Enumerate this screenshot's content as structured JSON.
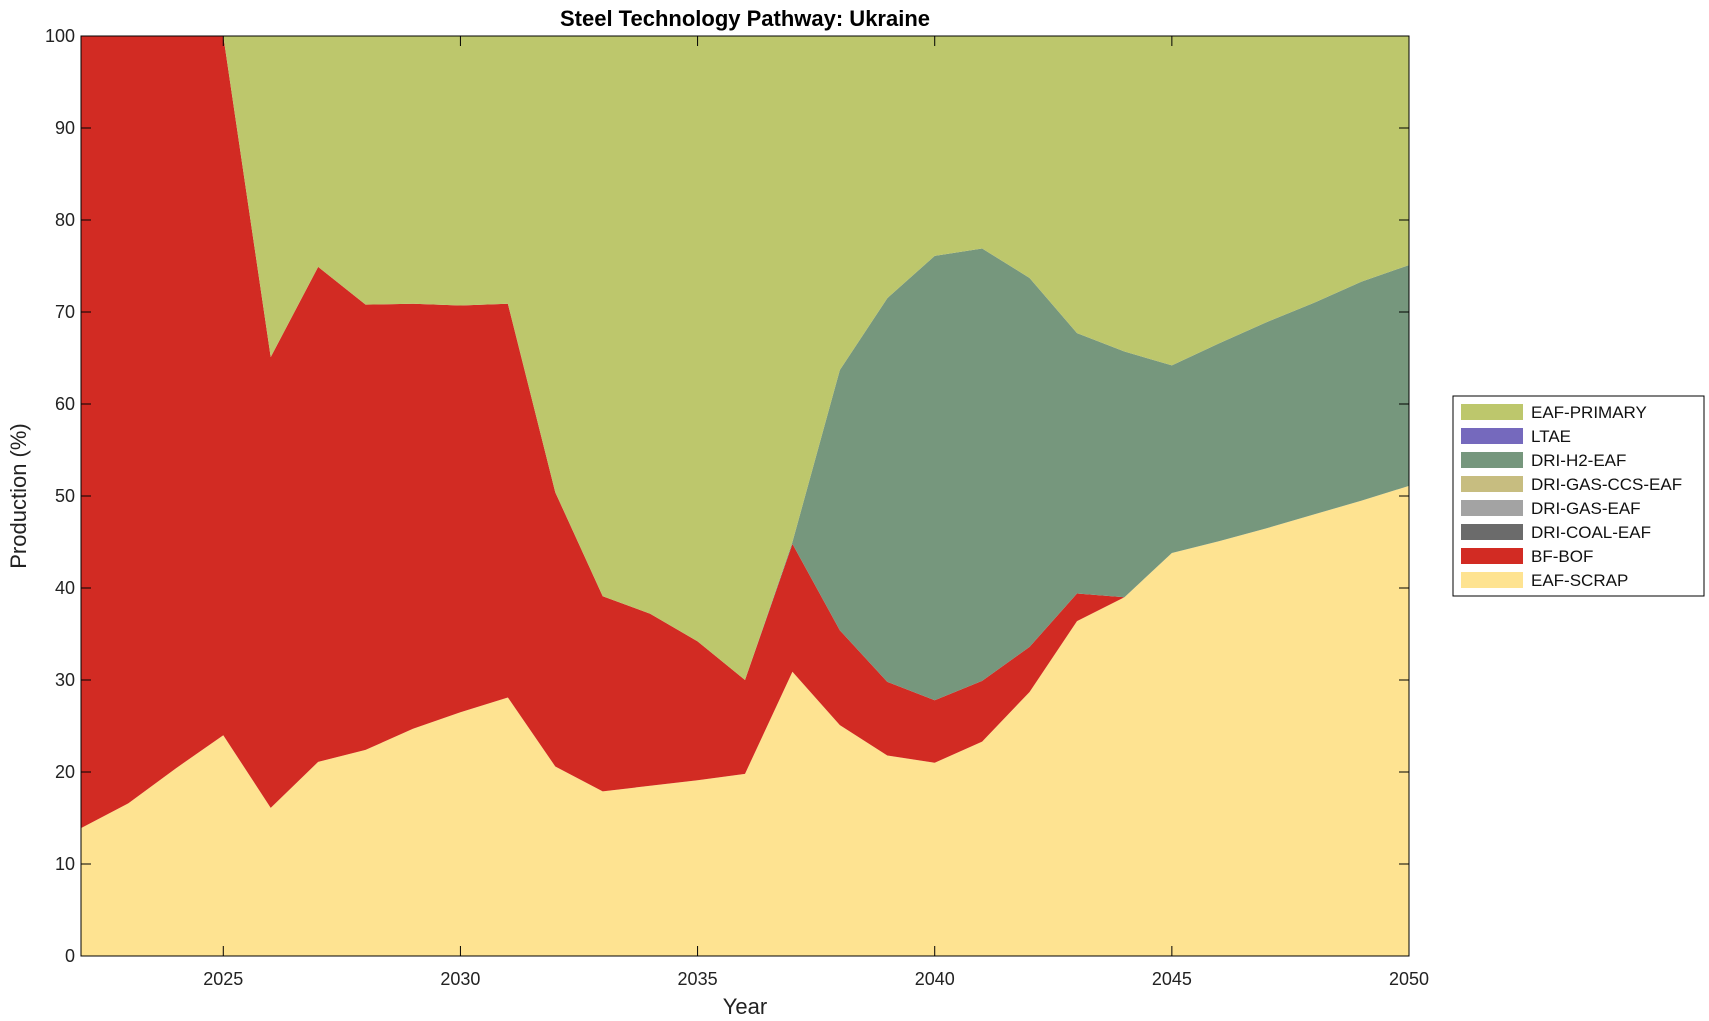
{
  "chart_data": {
    "type": "area",
    "title": "Steel Technology Pathway: Ukraine",
    "xlabel": "Year",
    "ylabel": "Production (%)",
    "xlim": [
      2022,
      2050
    ],
    "ylim": [
      0,
      100
    ],
    "xticks": [
      2025,
      2030,
      2035,
      2040,
      2045,
      2050
    ],
    "yticks": [
      0,
      10,
      20,
      30,
      40,
      50,
      60,
      70,
      80,
      90,
      100
    ],
    "grid": false,
    "stacked": true,
    "legend_position": "right",
    "x": [
      2022,
      2023,
      2024,
      2025,
      2026,
      2027,
      2028,
      2029,
      2030,
      2031,
      2032,
      2033,
      2034,
      2035,
      2036,
      2037,
      2038,
      2039,
      2040,
      2041,
      2042,
      2043,
      2044,
      2045,
      2046,
      2047,
      2048,
      2049,
      2050
    ],
    "series": [
      {
        "name": "EAF-SCRAP",
        "color": "#FEE391",
        "values": [
          13.9,
          16.6,
          20.4,
          24.0,
          16.1,
          21.1,
          22.4,
          24.7,
          26.5,
          28.1,
          20.6,
          17.9,
          18.5,
          19.1,
          19.8,
          30.9,
          25.1,
          21.8,
          21.0,
          23.3,
          28.7,
          36.4,
          39.0,
          43.8,
          45.1,
          46.5,
          48.0,
          49.5,
          51.1
        ]
      },
      {
        "name": "BF-BOF",
        "color": "#D22B23",
        "values": [
          86.1,
          83.4,
          79.6,
          76.0,
          49.0,
          53.8,
          48.4,
          46.2,
          44.2,
          42.8,
          29.8,
          21.2,
          18.7,
          15.1,
          10.2,
          13.9,
          10.3,
          8.0,
          6.8,
          6.6,
          4.9,
          3.0,
          0.0,
          0.0,
          0.0,
          0.0,
          0.0,
          0.0,
          0.0
        ]
      },
      {
        "name": "DRI-COAL-EAF",
        "color": "#6B6B6B",
        "values": [
          0,
          0,
          0,
          0,
          0,
          0,
          0,
          0,
          0,
          0,
          0,
          0,
          0,
          0,
          0,
          0,
          0,
          0,
          0,
          0,
          0,
          0,
          0,
          0,
          0,
          0,
          0,
          0,
          0
        ]
      },
      {
        "name": "DRI-GAS-EAF",
        "color": "#A3A3A3",
        "values": [
          0,
          0,
          0,
          0,
          0,
          0,
          0,
          0,
          0,
          0,
          0,
          0,
          0,
          0,
          0,
          0,
          0,
          0,
          0,
          0,
          0,
          0,
          0,
          0,
          0,
          0,
          0,
          0,
          0
        ]
      },
      {
        "name": "DRI-GAS-CCS-EAF",
        "color": "#C7BD80",
        "values": [
          0,
          0,
          0,
          0,
          0,
          0,
          0,
          0,
          0,
          0,
          0,
          0,
          0,
          0,
          0,
          0,
          0,
          0,
          0,
          0,
          0,
          0,
          0,
          0,
          0,
          0,
          0,
          0,
          0
        ]
      },
      {
        "name": "DRI-H2-EAF",
        "color": "#76977D",
        "values": [
          0,
          0,
          0,
          0,
          0,
          0,
          0,
          0,
          0,
          0,
          0,
          0,
          0,
          0,
          0,
          0.2,
          28.3,
          41.7,
          48.3,
          47.0,
          40.1,
          28.3,
          26.7,
          20.4,
          21.5,
          22.4,
          23.0,
          23.8,
          24.0
        ]
      },
      {
        "name": "LTAE",
        "color": "#7569BD",
        "values": [
          0,
          0,
          0,
          0,
          0,
          0,
          0,
          0,
          0,
          0,
          0,
          0,
          0,
          0,
          0,
          0,
          0,
          0,
          0,
          0,
          0,
          0,
          0,
          0,
          0,
          0,
          0,
          0,
          0
        ]
      },
      {
        "name": "EAF-PRIMARY",
        "color": "#BDC76C",
        "values": [
          0.0,
          0.0,
          0.0,
          0.0,
          34.9,
          25.1,
          29.2,
          29.1,
          29.3,
          29.1,
          49.6,
          60.9,
          62.8,
          65.8,
          70.0,
          55.0,
          36.3,
          28.5,
          23.9,
          23.1,
          26.3,
          32.3,
          34.3,
          35.8,
          33.4,
          31.1,
          29.0,
          26.7,
          24.9
        ]
      }
    ],
    "legend_order": [
      "EAF-PRIMARY",
      "LTAE",
      "DRI-H2-EAF",
      "DRI-GAS-CCS-EAF",
      "DRI-GAS-EAF",
      "DRI-COAL-EAF",
      "BF-BOF",
      "EAF-SCRAP"
    ]
  }
}
